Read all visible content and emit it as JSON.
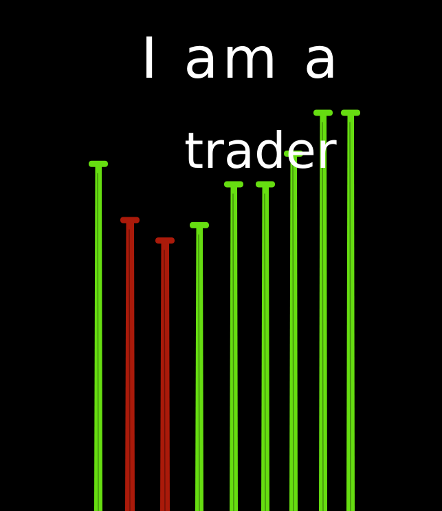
{
  "image": {
    "background": "#000000",
    "text_color": "#ffffff",
    "caption_line_1": "I am a",
    "caption_line_2": "trader"
  },
  "colors": {
    "up": "#66dd11",
    "down": "#aa1a0a"
  },
  "bars": [
    {
      "direction": "up",
      "level": 0.68
    },
    {
      "direction": "down",
      "level": 0.57
    },
    {
      "direction": "down",
      "level": 0.53
    },
    {
      "direction": "up",
      "level": 0.56
    },
    {
      "direction": "up",
      "level": 0.64
    },
    {
      "direction": "up",
      "level": 0.64
    },
    {
      "direction": "up",
      "level": 0.7
    },
    {
      "direction": "up",
      "level": 0.78
    },
    {
      "direction": "up",
      "level": 0.78
    }
  ]
}
